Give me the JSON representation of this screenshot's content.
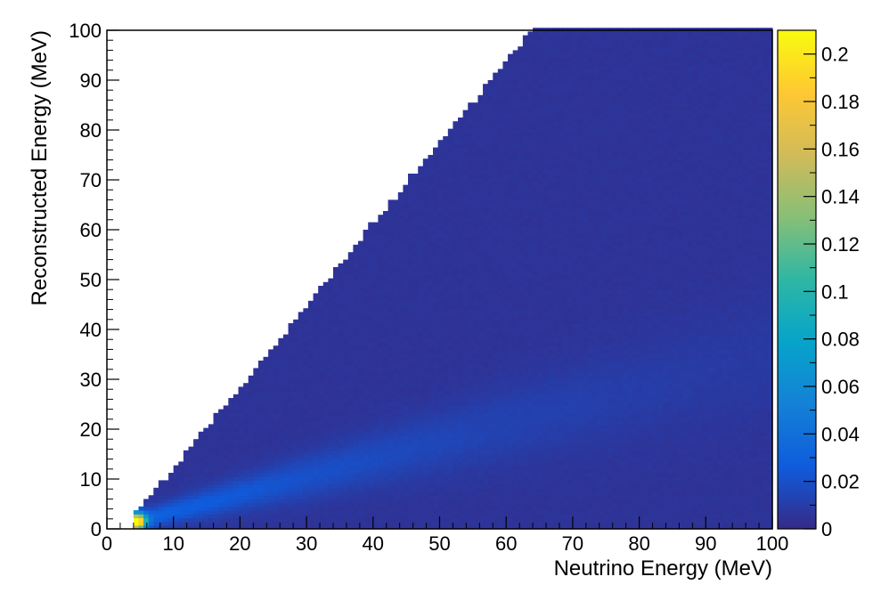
{
  "chart_data": {
    "type": "heatmap",
    "title": "",
    "xlabel": "Neutrino Energy (MeV)",
    "ylabel": "Reconstructed Energy (MeV)",
    "xlim": [
      0,
      100
    ],
    "ylim": [
      0,
      100
    ],
    "x_ticks": [
      "0",
      "10",
      "20",
      "30",
      "40",
      "50",
      "60",
      "70",
      "80",
      "90",
      "100"
    ],
    "y_ticks": [
      "0",
      "10",
      "20",
      "30",
      "40",
      "50",
      "60",
      "70",
      "80",
      "90",
      "100"
    ],
    "colorbar": {
      "range": [
        0,
        0.21
      ],
      "ticks": [
        "0",
        "0.02",
        "0.04",
        "0.06",
        "0.08",
        "0.1",
        "0.12",
        "0.14",
        "0.16",
        "0.18",
        "0.2"
      ],
      "tick_values": [
        0,
        0.02,
        0.04,
        0.06,
        0.08,
        0.1,
        0.12,
        0.14,
        0.16,
        0.18,
        0.2
      ],
      "palette": [
        "#352a87",
        "#0f5cdd",
        "#1481d6",
        "#06a4ca",
        "#2eb7a4",
        "#87bf77",
        "#d1bb59",
        "#fec832",
        "#f9fb0e"
      ]
    },
    "distribution": {
      "threshold_neutrino_energy": 4,
      "peak_value": 0.21,
      "peak_at": [
        4.5,
        1.5
      ],
      "upper_edge_slope": 1.63,
      "upper_edge_intercept": -4,
      "ridge_slope": 0.35,
      "empty_color": "#ffffff"
    },
    "grid": false,
    "legend": "colorbar-right"
  }
}
